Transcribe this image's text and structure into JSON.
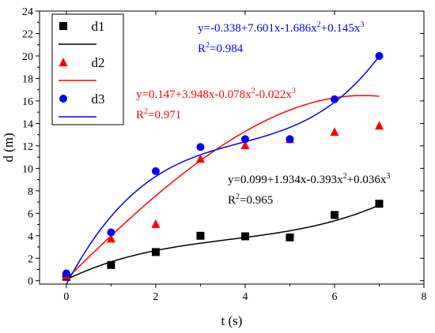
{
  "chart_data": {
    "type": "scatter",
    "xlabel": "t (s)",
    "ylabel": "d (m)",
    "xlim": [
      -0.6,
      8
    ],
    "ylim": [
      -0.3,
      24
    ],
    "xticks": [
      "0",
      "2",
      "4",
      "6",
      "8"
    ],
    "yticks": [
      "0",
      "2",
      "4",
      "6",
      "8",
      "10",
      "12",
      "14",
      "16",
      "18",
      "20",
      "22",
      "24"
    ],
    "legend_position": "top-left",
    "series": [
      {
        "name": "d1",
        "color": "#000000",
        "marker": "square",
        "x": [
          0,
          1,
          2,
          3,
          4,
          5,
          6,
          7
        ],
        "y": [
          0.35,
          1.4,
          2.55,
          4.0,
          3.95,
          3.85,
          5.85,
          6.85
        ],
        "fit": [
          0.099,
          1.934,
          -0.393,
          0.036
        ],
        "equation": {
          "base": "y=0.099+1.934x-0.393x",
          "sup1": "2",
          "mid": "+0.036x",
          "sup2": "3"
        },
        "r2": {
          "label": "R",
          "sup": "2",
          "value": "=0.965"
        }
      },
      {
        "name": "d2",
        "color": "#ff0000",
        "marker": "triangle",
        "x": [
          0,
          1,
          2,
          3,
          4,
          5,
          6,
          7
        ],
        "y": [
          0.45,
          3.75,
          5.05,
          10.85,
          12.05,
          12.6,
          13.25,
          13.8
        ],
        "fit": [
          0.147,
          3.948,
          -0.078,
          -0.022
        ],
        "equation": {
          "base": "y=0.147+3.948x-0.078x",
          "sup1": "2",
          "mid": "-0.022x",
          "sup2": "3"
        },
        "r2": {
          "label": "R",
          "sup": "2",
          "value": "=0.971"
        }
      },
      {
        "name": "d3",
        "color": "#0000ff",
        "marker": "circle",
        "x": [
          0,
          1,
          2,
          3,
          4,
          5,
          6,
          7
        ],
        "y": [
          0.65,
          4.3,
          9.75,
          11.9,
          12.6,
          12.6,
          16.15,
          20.0
        ],
        "fit": [
          -0.338,
          7.601,
          -1.686,
          0.145
        ],
        "equation": {
          "base": "y=-0.338+7.601x-1.686x",
          "sup1": "2",
          "mid": "+0.145x",
          "sup2": "3"
        },
        "r2": {
          "label": "R",
          "sup": "2",
          "value": "=0.984"
        }
      }
    ]
  }
}
